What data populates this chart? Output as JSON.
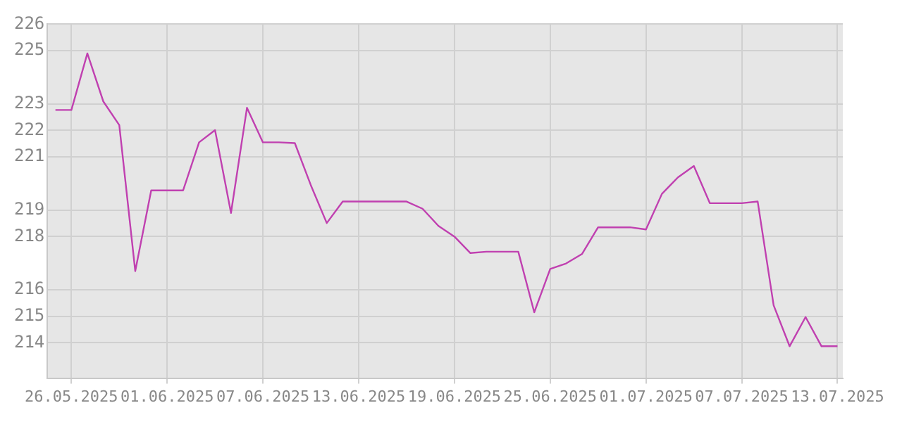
{
  "chart_data": {
    "type": "line",
    "x": [
      "2025-05-25",
      "2025-05-26",
      "2025-05-27",
      "2025-05-28",
      "2025-05-29",
      "2025-05-30",
      "2025-05-31",
      "2025-06-01",
      "2025-06-02",
      "2025-06-03",
      "2025-06-04",
      "2025-06-05",
      "2025-06-06",
      "2025-06-07",
      "2025-06-08",
      "2025-06-09",
      "2025-06-10",
      "2025-06-11",
      "2025-06-12",
      "2025-06-13",
      "2025-06-14",
      "2025-06-15",
      "2025-06-16",
      "2025-06-17",
      "2025-06-18",
      "2025-06-19",
      "2025-06-20",
      "2025-06-21",
      "2025-06-22",
      "2025-06-23",
      "2025-06-24",
      "2025-06-25",
      "2025-06-26",
      "2025-06-27",
      "2025-06-28",
      "2025-06-29",
      "2025-06-30",
      "2025-07-01",
      "2025-07-02",
      "2025-07-03",
      "2025-07-04",
      "2025-07-05",
      "2025-07-06",
      "2025-07-07",
      "2025-07-08",
      "2025-07-09",
      "2025-07-10",
      "2025-07-11",
      "2025-07-12",
      "2025-07-13"
    ],
    "series": [
      {
        "color": "#c040b0",
        "values": [
          222.77,
          222.77,
          224.9,
          223.09,
          222.2,
          216.7,
          219.74,
          219.74,
          219.74,
          221.55,
          222.01,
          218.89,
          222.85,
          221.55,
          221.55,
          221.52,
          219.94,
          218.51,
          219.32,
          219.32,
          219.32,
          219.32,
          219.32,
          219.05,
          218.4,
          218.0,
          217.38,
          217.43,
          217.43,
          217.43,
          215.15,
          216.78,
          216.99,
          217.35,
          218.35,
          218.35,
          218.35,
          218.27,
          219.61,
          220.23,
          220.66,
          219.26,
          219.26,
          219.26,
          219.32,
          215.41,
          213.87,
          214.97,
          213.87,
          213.87
        ]
      }
    ],
    "xlim": [
      "2025-05-24T12:00",
      "2025-07-13T08:00"
    ],
    "xticks": [
      {
        "value": "2025-05-26",
        "label": "26.05.2025"
      },
      {
        "value": "2025-06-01",
        "label": "01.06.2025"
      },
      {
        "value": "2025-06-07",
        "label": "07.06.2025"
      },
      {
        "value": "2025-06-13",
        "label": "13.06.2025"
      },
      {
        "value": "2025-06-19",
        "label": "19.06.2025"
      },
      {
        "value": "2025-06-25",
        "label": "25.06.2025"
      },
      {
        "value": "2025-07-01",
        "label": "01.07.2025"
      },
      {
        "value": "2025-07-07",
        "label": "07.07.2025"
      },
      {
        "value": "2025-07-13",
        "label": "13.07.2025"
      }
    ],
    "ylim": [
      212.67,
      226
    ],
    "yticks": [
      226,
      225,
      223,
      222,
      221,
      219,
      218,
      216,
      215,
      214
    ],
    "grid": true,
    "legend": false,
    "marker": "none",
    "line_style": "solid"
  }
}
